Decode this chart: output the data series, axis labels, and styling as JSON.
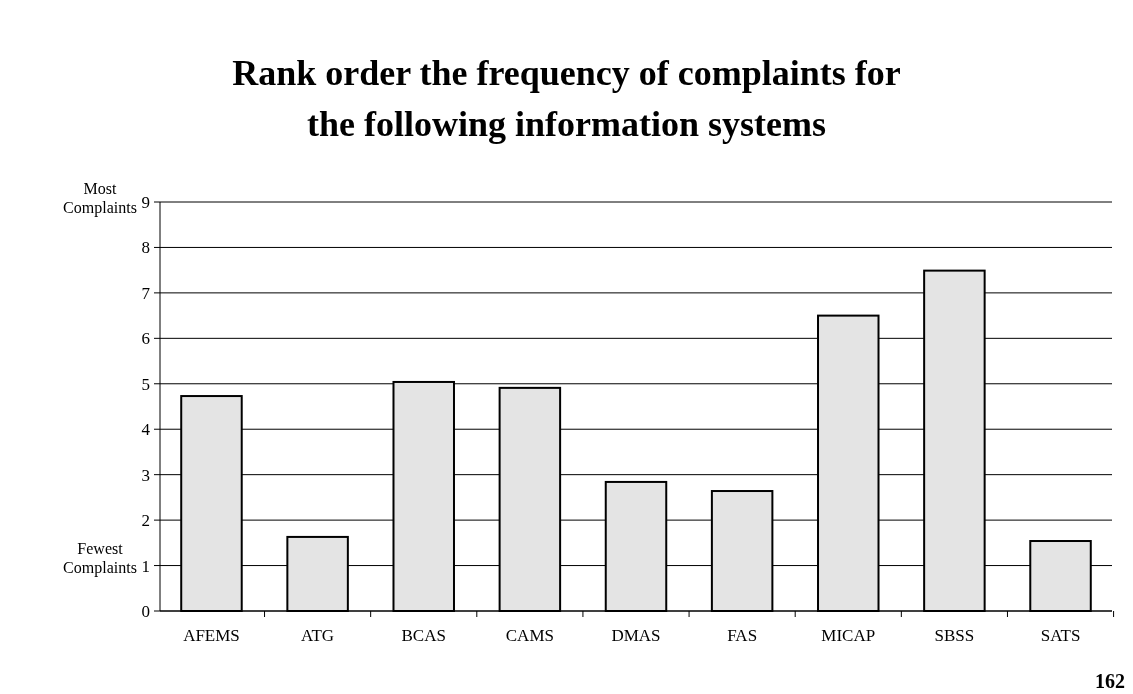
{
  "chart_data": {
    "type": "bar",
    "title": "Rank order the frequency of complaints for the following information systems",
    "categories": [
      "AFEMS",
      "ATG",
      "BCAS",
      "CAMS",
      "DMAS",
      "FAS",
      "MICAP",
      "SBSS",
      "SATS"
    ],
    "values": [
      4.73,
      1.63,
      5.04,
      4.91,
      2.84,
      2.64,
      6.5,
      7.49,
      1.54
    ],
    "color": "#e4e4e4",
    "ylim": [
      0,
      9
    ],
    "yticks": [
      0,
      1,
      2,
      3,
      4,
      5,
      6,
      7,
      8,
      9
    ],
    "grid": "y",
    "annotations": [
      "Most Complaints",
      "Fewest Complaints",
      "162"
    ]
  }
}
